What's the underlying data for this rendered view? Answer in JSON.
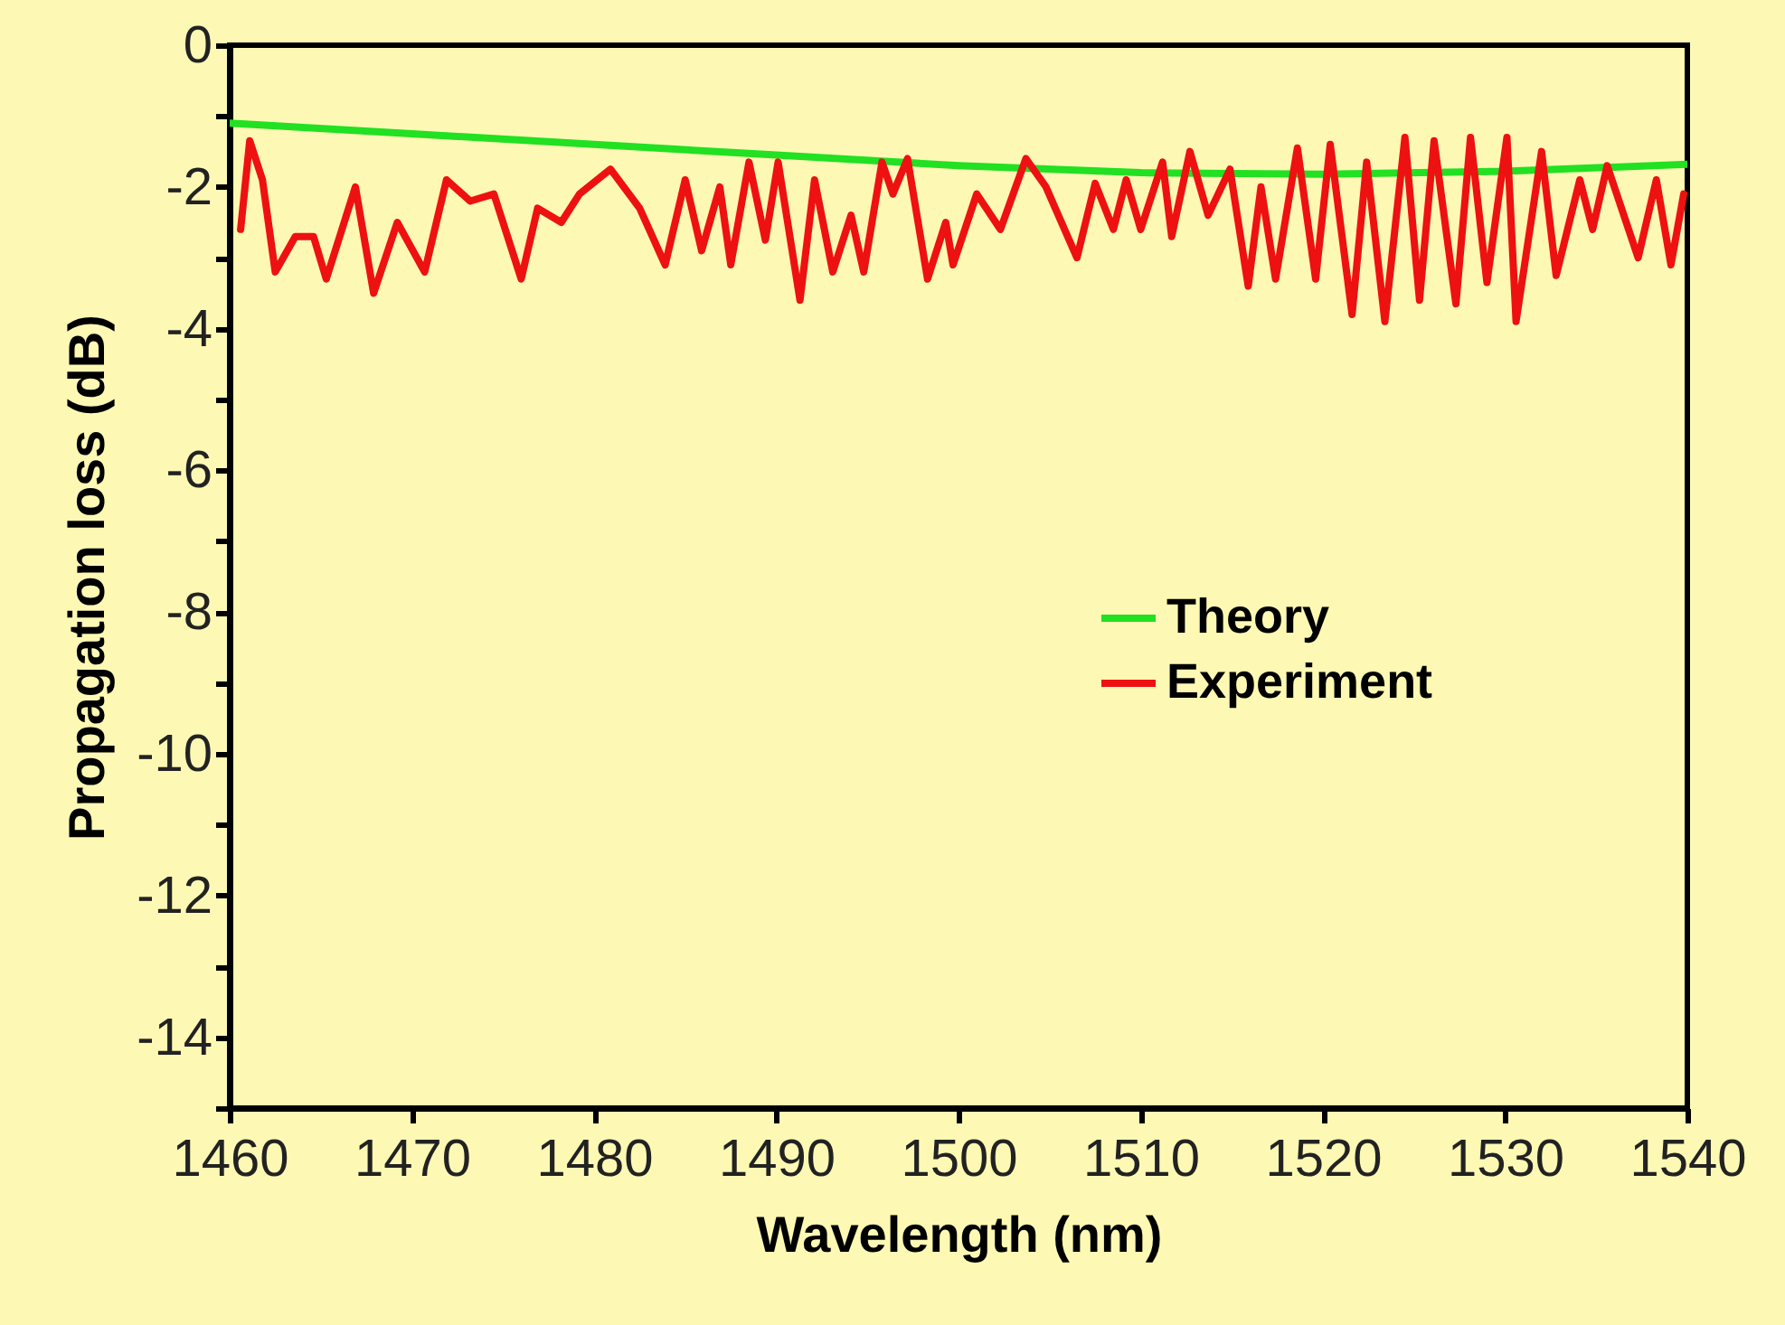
{
  "chart_data": {
    "type": "line",
    "xlabel": "Wavelength (nm)",
    "ylabel": "Propagation loss (dB)",
    "xlim": [
      1460,
      1540
    ],
    "xticks": [
      1460,
      1470,
      1480,
      1490,
      1500,
      1510,
      1520,
      1530,
      1540
    ],
    "ylim": [
      -15,
      0
    ],
    "yticks": [
      0,
      {
        "value": -1,
        "label": null
      },
      -2,
      {
        "value": -3,
        "label": null
      },
      -4,
      {
        "value": -5,
        "label": null
      },
      -6,
      {
        "value": -7,
        "label": null
      },
      -8,
      {
        "value": -9,
        "label": null
      },
      -10,
      {
        "value": -11,
        "label": null
      },
      -12,
      {
        "value": -13,
        "label": null
      },
      -14,
      {
        "value": -15,
        "label": null
      }
    ],
    "grid": false,
    "legend": "right",
    "line_style": "solid",
    "series": [
      {
        "name": "Theory",
        "color": "#22e022",
        "x": [
          1460,
          1470,
          1480,
          1490,
          1500,
          1510,
          1520,
          1530,
          1540
        ],
        "values": [
          -1.1,
          -1.25,
          -1.4,
          -1.55,
          -1.7,
          -1.8,
          -1.82,
          -1.78,
          -1.68
        ]
      },
      {
        "name": "Experiment",
        "color": "#ee1111",
        "x": [
          1460.6,
          1461.1,
          1461.8,
          1462.5,
          1463.6,
          1464.6,
          1465.3,
          1466.9,
          1467.9,
          1469.2,
          1470.7,
          1471.9,
          1473.2,
          1474.5,
          1476.0,
          1476.9,
          1478.2,
          1479.2,
          1480.9,
          1482.5,
          1483.9,
          1485.0,
          1485.9,
          1486.9,
          1487.5,
          1488.5,
          1489.4,
          1490.1,
          1491.3,
          1492.1,
          1493.1,
          1494.1,
          1494.8,
          1495.8,
          1496.4,
          1497.2,
          1498.3,
          1499.3,
          1499.7,
          1501.0,
          1502.3,
          1503.7,
          1504.8,
          1506.5,
          1507.5,
          1508.5,
          1509.2,
          1510.0,
          1511.2,
          1511.7,
          1512.7,
          1513.7,
          1514.9,
          1515.9,
          1516.6,
          1517.4,
          1518.6,
          1519.6,
          1520.4,
          1521.6,
          1522.4,
          1523.4,
          1524.5,
          1525.3,
          1526.1,
          1527.3,
          1528.1,
          1529.0,
          1530.1,
          1530.6,
          1532.0,
          1532.8,
          1534.1,
          1534.8,
          1535.6,
          1537.3,
          1538.3,
          1539.1,
          1539.8
        ],
        "values": [
          -2.6,
          -1.35,
          -1.9,
          -3.2,
          -2.7,
          -2.7,
          -3.3,
          -2.0,
          -3.5,
          -2.5,
          -3.2,
          -1.9,
          -2.2,
          -2.1,
          -3.3,
          -2.3,
          -2.5,
          -2.1,
          -1.75,
          -2.3,
          -3.1,
          -1.9,
          -2.9,
          -2.0,
          -3.1,
          -1.65,
          -2.75,
          -1.65,
          -3.6,
          -1.9,
          -3.2,
          -2.4,
          -3.2,
          -1.65,
          -2.1,
          -1.6,
          -3.3,
          -2.5,
          -3.1,
          -2.1,
          -2.6,
          -1.6,
          -2.0,
          -3.0,
          -1.95,
          -2.6,
          -1.9,
          -2.6,
          -1.65,
          -2.7,
          -1.5,
          -2.4,
          -1.75,
          -3.4,
          -2.0,
          -3.3,
          -1.45,
          -3.3,
          -1.4,
          -3.8,
          -1.65,
          -3.9,
          -1.3,
          -3.6,
          -1.35,
          -3.65,
          -1.3,
          -3.35,
          -1.3,
          -3.9,
          -1.5,
          -3.25,
          -1.9,
          -2.6,
          -1.7,
          -3.0,
          -1.9,
          -3.1,
          -2.1
        ]
      }
    ]
  }
}
